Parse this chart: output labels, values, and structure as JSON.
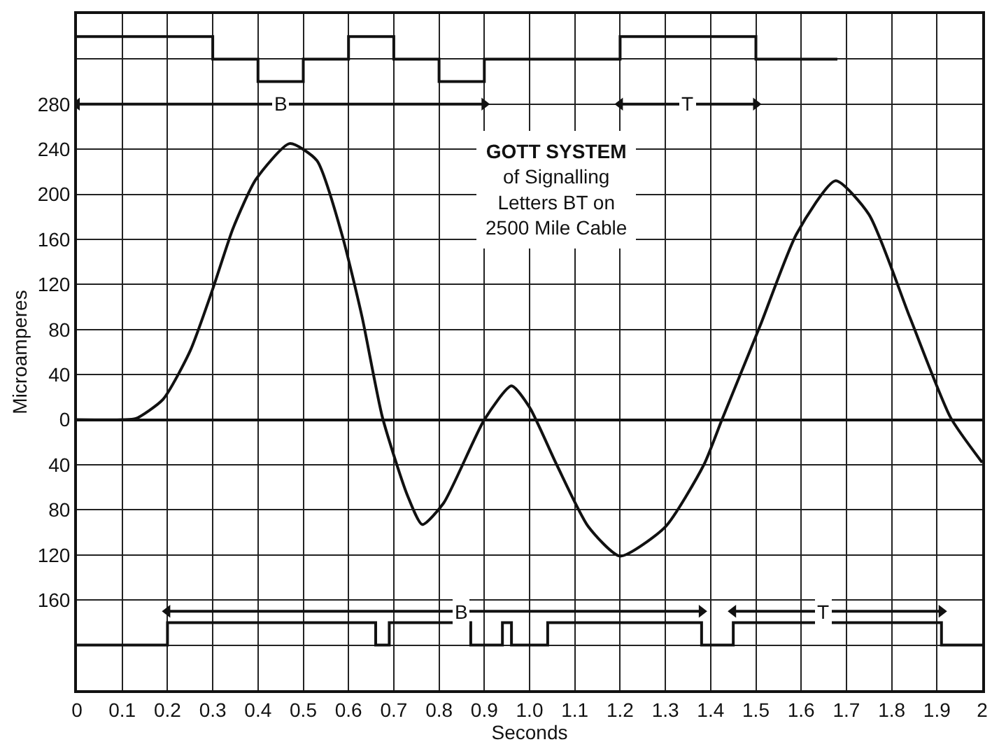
{
  "chart_data": {
    "type": "line",
    "title": "GOTT SYSTEM\nof Signalling\nLetters BT on\n2500 Mile Cable",
    "xlabel": "Seconds",
    "ylabel": "Microamperes",
    "xlim": [
      0,
      2
    ],
    "ylim": [
      -240,
      360
    ],
    "xticks": [
      0,
      0.1,
      0.2,
      0.3,
      0.4,
      0.5,
      0.6,
      0.7,
      0.8,
      0.9,
      {
        "value": 1,
        "label": "1.0"
      },
      1.1,
      1.2,
      1.3,
      1.4,
      1.5,
      1.6,
      1.7,
      1.8,
      1.9,
      2
    ],
    "yticks": [
      {
        "value": -240,
        "label": null
      },
      {
        "value": -200,
        "label": null
      },
      {
        "value": -160,
        "label": "160"
      },
      {
        "value": -120,
        "label": "120"
      },
      {
        "value": -80,
        "label": "80"
      },
      {
        "value": -40,
        "label": "40"
      },
      0,
      40,
      80,
      120,
      160,
      200,
      240,
      280,
      {
        "value": 320,
        "label": null
      },
      {
        "value": 360,
        "label": null
      }
    ],
    "grid": true,
    "series": [
      {
        "color": "#111111",
        "x": [
          0,
          0.1,
          0.13,
          0.19,
          0.25,
          0.3,
          0.345,
          0.395,
          0.47,
          0.53,
          0.585,
          0.63,
          0.675,
          0.73,
          0.763,
          0.81,
          0.9,
          0.96,
          1.0,
          1.06,
          1.13,
          1.2,
          1.3,
          1.385,
          1.425,
          1.51,
          1.59,
          1.676,
          1.75,
          1.84,
          1.93,
          2.0
        ],
        "values": [
          0,
          0,
          1,
          18,
          61,
          116,
          170,
          213,
          245,
          230,
          165,
          91,
          2,
          -67,
          -93,
          -74,
          0,
          30,
          11,
          -40,
          -95,
          -121,
          -95,
          -40,
          0,
          84,
          165,
          212,
          182,
          91,
          2,
          -38
        ]
      },
      {
        "type": "step",
        "color": "#111111",
        "x": [
          0,
          0.3,
          0.4,
          0.5,
          0.6,
          0.7,
          0.8,
          0.9,
          1.2,
          1.5,
          1.68
        ],
        "values": [
          340,
          320,
          300,
          320,
          340,
          320,
          300,
          320,
          340,
          320,
          320
        ]
      },
      {
        "type": "step",
        "color": "#111111",
        "x": [
          0,
          0.2,
          0.66,
          0.69,
          0.87,
          0.94,
          0.96,
          1.04,
          1.38,
          1.45,
          1.91,
          2
        ],
        "values": [
          -200,
          -180,
          -200,
          -180,
          -200,
          -180,
          -200,
          -180,
          -200,
          -180,
          -200,
          -200
        ]
      },
      {
        "type": "line",
        "color": "#111111",
        "marker": "triangle",
        "x": [
          0,
          0.9
        ],
        "values": [
          280,
          280
        ]
      },
      {
        "type": "line",
        "color": "#111111",
        "marker": "triangle",
        "x": [
          1.2,
          1.5
        ],
        "values": [
          280,
          280
        ]
      },
      {
        "type": "line",
        "color": "#111111",
        "marker": "triangle",
        "x": [
          0.2,
          1.38
        ],
        "values": [
          -170,
          -170
        ]
      },
      {
        "type": "line",
        "color": "#111111",
        "marker": "triangle",
        "x": [
          1.45,
          1.91
        ],
        "values": [
          -170,
          -170
        ]
      }
    ],
    "annotations": [
      {
        "text": "B",
        "x": 0.45,
        "y": 280
      },
      {
        "text": "T",
        "x": 1.35,
        "y": 280
      },
      {
        "text": "B",
        "x": 0.85,
        "y": -170
      },
      {
        "text": "T",
        "x": 1.65,
        "y": -170
      }
    ]
  }
}
